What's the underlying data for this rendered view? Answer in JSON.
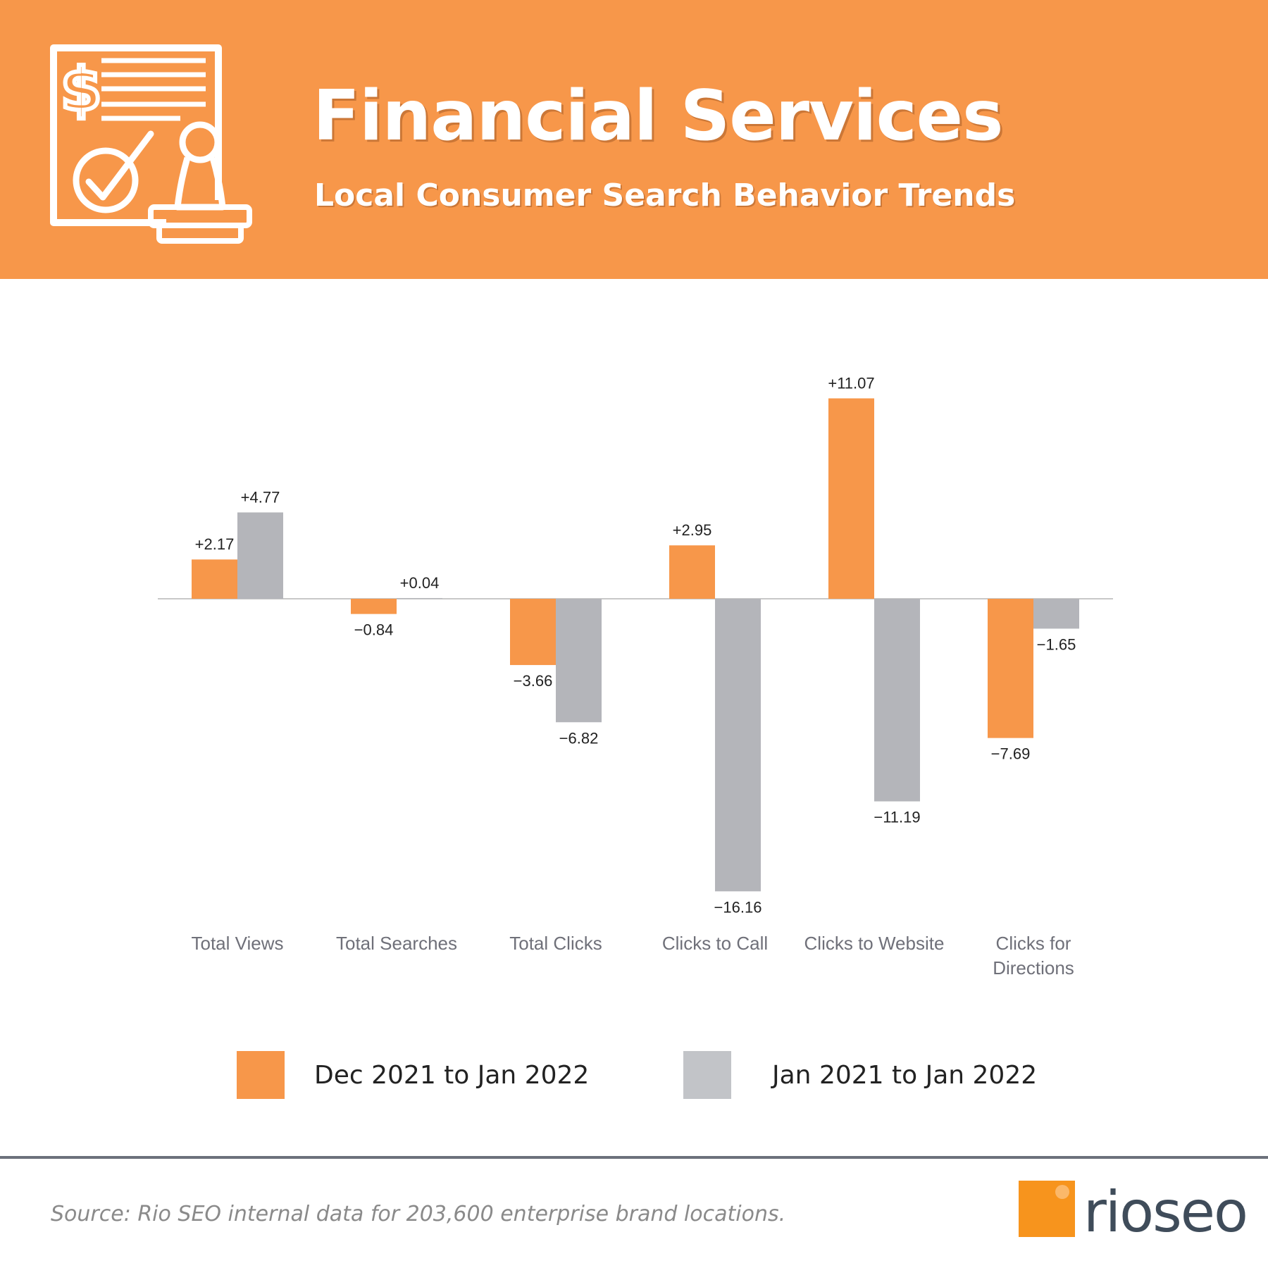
{
  "header": {
    "title": "Financial Services",
    "subtitle": "Local Consumer Search Behavior Trends",
    "icon": "financial-document-stamp-icon",
    "background_color": "#f7974a"
  },
  "chart_data": {
    "type": "bar",
    "title": "Financial Services",
    "subtitle": "Local Consumer Search Behavior Trends",
    "xlabel": "",
    "ylabel": "",
    "ylim": [
      -16.16,
      11.07
    ],
    "grid": false,
    "legend_position": "bottom",
    "categories": [
      "Total Views",
      "Total Searches",
      "Total Clicks",
      "Clicks to Call",
      "Clicks to Website",
      "Clicks for Directions"
    ],
    "series": [
      {
        "name": "Dec 2021 to Jan 2022",
        "color": "#f7974a",
        "values": [
          2.17,
          -0.84,
          -3.66,
          2.95,
          11.07,
          -7.69
        ],
        "labels": [
          "+2.17",
          "−0.84",
          "−3.66",
          "+2.95",
          "+11.07",
          "−7.69"
        ]
      },
      {
        "name": "Jan 2021 to Jan 2022",
        "color": "#b4b5ba",
        "values": [
          4.77,
          0.04,
          -6.82,
          -16.16,
          -11.19,
          -1.65
        ],
        "labels": [
          "+4.77",
          "+0.04",
          "−6.82",
          "−16.16",
          "−11.19",
          "−1.65"
        ]
      }
    ]
  },
  "legend": {
    "items": [
      {
        "label": "Dec 2021 to Jan 2022",
        "color": "#f7974a"
      },
      {
        "label": "Jan 2021 to Jan 2022",
        "color": "#c2c4c8"
      }
    ]
  },
  "footer": {
    "source": "Source: Rio SEO internal data for 203,600 enterprise brand locations.",
    "logo_text": "rioseo",
    "logo_color": "#f7941d"
  }
}
